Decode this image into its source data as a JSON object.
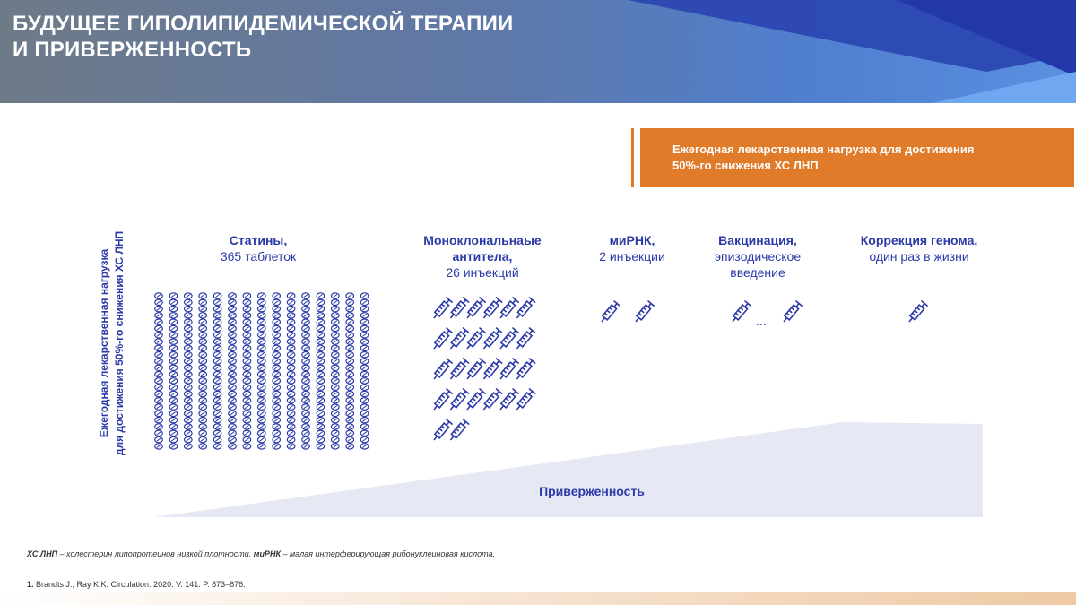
{
  "title": {
    "line1": "БУДУЩЕЕ ГИПОЛИПИДЕМИЧЕСКОЙ ТЕРАПИИ",
    "line2": "И ПРИВЕРЖЕННОСТЬ"
  },
  "legend": {
    "line1": "Ежегодная лекарственная нагрузка для достижения",
    "line2": "50%-го снижения ХС ЛНП"
  },
  "y_axis": {
    "line1": "Ежегодная лекарственная нагрузка",
    "line2": "для достижения 50%-го снижения ХС ЛНП"
  },
  "categories": [
    {
      "name": "Статины,",
      "detail": "365 таблеток"
    },
    {
      "name1": "Моноклональнаые",
      "name2": "антитела,",
      "detail": "26 инъекций"
    },
    {
      "name": "миРНК,",
      "detail": "2 инъекции"
    },
    {
      "name": "Вакцинация,",
      "detail1": "эпизодическое",
      "detail2": "введение"
    },
    {
      "name": "Коррекция генома,",
      "detail": "один раз в жизни"
    }
  ],
  "counts": {
    "pills": 365,
    "mab_injections": 26,
    "sirna_injections": 2,
    "vaccination_shown": 2,
    "genome_shown": 1
  },
  "vaccination_gap": "...",
  "adherence_label": "Приверженность",
  "footnote": {
    "abbr1": "ХС ЛНП",
    "def1": " – холестерин липопротеинов низкой плотности. ",
    "abbr2": "миРНК",
    "def2": " – малая интерферирующая рибонуклеиновая кислота."
  },
  "reference": {
    "num": "1.",
    "text": " Brandts J., Ray K.K. Circulation. 2020. V. 141. P. 873–876."
  },
  "colors": {
    "accent": "#2b3aa8",
    "orange": "#e07b2a",
    "wedge": "#e6e8f4",
    "header_dark": "#6b7a8c",
    "header_blue": "#1d3fa8"
  }
}
